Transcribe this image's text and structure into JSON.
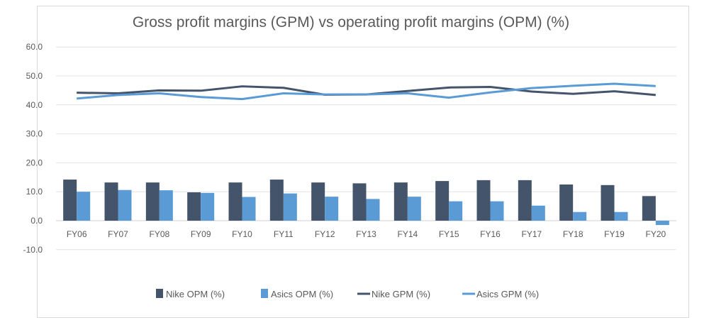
{
  "chart_data": {
    "type": "bar",
    "title": "Gross profit margins (GPM) vs operating profit margins (OPM) (%)",
    "xlabel": "",
    "ylabel": "",
    "ylim": [
      -10,
      60
    ],
    "yticks": [
      "60.0",
      "50.0",
      "40.0",
      "30.0",
      "20.0",
      "10.0",
      "0.0",
      "-10.0"
    ],
    "ytick_values": [
      60,
      50,
      40,
      30,
      20,
      10,
      0,
      -10
    ],
    "grid": true,
    "legend_position": "bottom",
    "categories": [
      "FY06",
      "FY07",
      "FY08",
      "FY09",
      "FY10",
      "FY11",
      "FY12",
      "FY13",
      "FY14",
      "FY15",
      "FY16",
      "FY17",
      "FY18",
      "FY19",
      "FY20"
    ],
    "series": [
      {
        "name": "Nike OPM (%)",
        "kind": "bar",
        "color": "#44546a",
        "values": [
          14.2,
          13.2,
          13.2,
          9.8,
          13.2,
          14.2,
          13.2,
          12.9,
          13.2,
          13.7,
          14.0,
          14.0,
          12.5,
          12.3,
          8.5
        ]
      },
      {
        "name": "Asics OPM (%)",
        "kind": "bar",
        "color": "#5b9bd5",
        "values": [
          10.0,
          10.6,
          10.5,
          9.6,
          8.2,
          9.4,
          8.3,
          7.5,
          8.3,
          6.7,
          6.7,
          5.2,
          3.0,
          3.0,
          -1.5
        ]
      },
      {
        "name": "Nike GPM (%)",
        "kind": "line",
        "color": "#44546a",
        "values": [
          44.2,
          44.0,
          45.0,
          44.9,
          46.4,
          45.9,
          43.5,
          43.6,
          44.8,
          46.0,
          46.2,
          44.6,
          43.8,
          44.7,
          43.4
        ]
      },
      {
        "name": "Asics GPM (%)",
        "kind": "line",
        "color": "#5b9bd5",
        "values": [
          42.2,
          43.4,
          44.0,
          42.7,
          42.0,
          44.0,
          43.6,
          43.6,
          44.0,
          42.5,
          44.3,
          45.8,
          46.6,
          47.3,
          46.5
        ]
      }
    ]
  }
}
